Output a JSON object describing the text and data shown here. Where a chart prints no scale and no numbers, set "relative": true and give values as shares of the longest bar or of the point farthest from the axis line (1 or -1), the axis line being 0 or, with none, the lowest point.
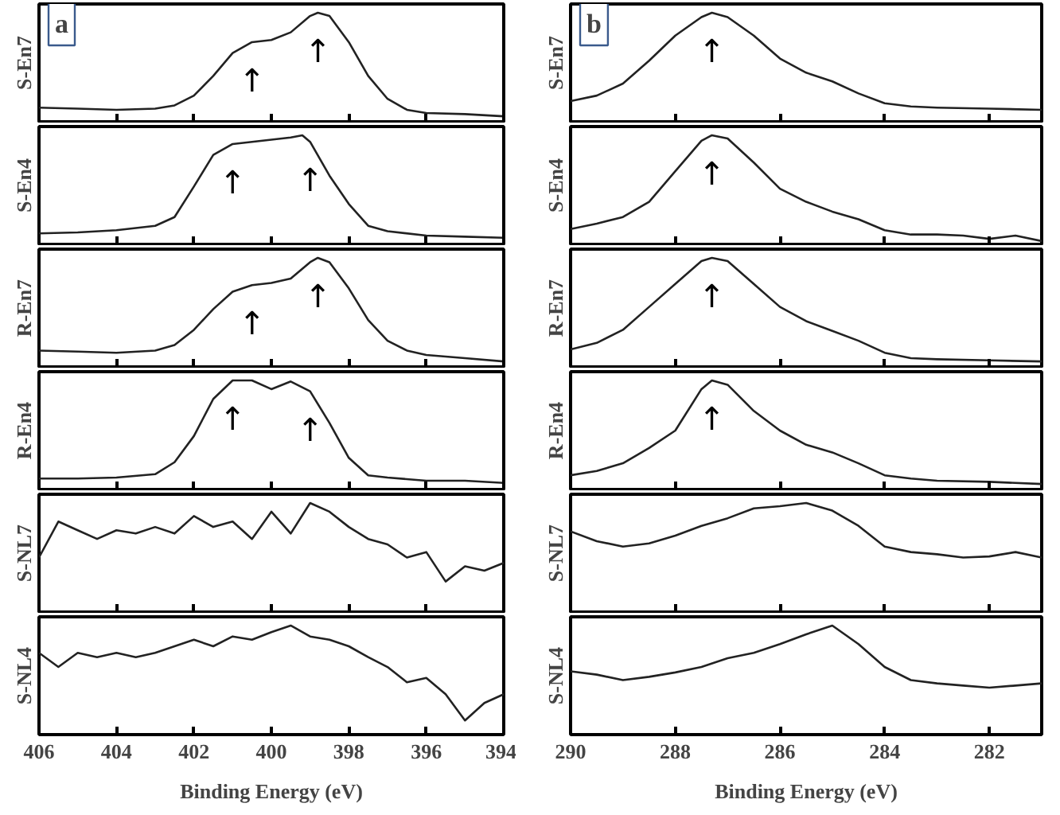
{
  "chart_data": [
    {
      "type": "line",
      "relative": true,
      "ylabel": "S-En7",
      "xlim": [
        406,
        394
      ],
      "xticks": [
        406,
        404,
        402,
        400,
        398,
        396,
        394
      ],
      "tick_labels": false,
      "annotations": [
        "a",
        {
          "text": "↑",
          "x": 400.5,
          "y": 0.73
        },
        {
          "text": "↑",
          "x": 398.8,
          "y": 1
        }
      ],
      "x": [
        406,
        405,
        404,
        403,
        402.5,
        402,
        401.5,
        401,
        400.5,
        400,
        399.5,
        399,
        398.8,
        398.5,
        398,
        397.5,
        397,
        396.5,
        396,
        395,
        394
      ],
      "series": [
        {
          "color": "#222222",
          "values": [
            0.13,
            0.12,
            0.11,
            0.12,
            0.15,
            0.24,
            0.42,
            0.63,
            0.73,
            0.75,
            0.82,
            0.97,
            1,
            0.97,
            0.73,
            0.42,
            0.21,
            0.11,
            0.08,
            0.07,
            0.05
          ]
        }
      ]
    },
    {
      "type": "line",
      "relative": true,
      "ylabel": "S-En7",
      "xlim": [
        290,
        281
      ],
      "xticks": [
        290,
        288,
        286,
        284,
        282
      ],
      "tick_labels": false,
      "annotations": [
        "b",
        {
          "text": "↑",
          "x": 287.3,
          "y": 1
        }
      ],
      "x": [
        290,
        289.5,
        289,
        288.5,
        288,
        287.5,
        287.3,
        287,
        286.5,
        286,
        285.5,
        285,
        284.5,
        284,
        283.5,
        283,
        282,
        281
      ],
      "series": [
        {
          "color": "#222222",
          "values": [
            0.19,
            0.24,
            0.35,
            0.56,
            0.79,
            0.96,
            1,
            0.96,
            0.79,
            0.58,
            0.45,
            0.37,
            0.26,
            0.17,
            0.14,
            0.13,
            0.12,
            0.11
          ]
        }
      ]
    },
    {
      "type": "line",
      "relative": true,
      "ylabel": "S-En4",
      "xlim": [
        406,
        394
      ],
      "xticks": [
        406,
        404,
        402,
        400,
        398,
        396,
        394
      ],
      "tick_labels": false,
      "annotations": [
        {
          "text": "↑",
          "x": 401,
          "y": 0.92
        },
        {
          "text": "↑",
          "x": 399,
          "y": 0.94
        }
      ],
      "x": [
        406,
        405,
        404,
        403,
        402.5,
        402,
        401.5,
        401,
        400.5,
        400,
        399.5,
        399.2,
        399,
        398.5,
        398,
        397.5,
        397,
        396,
        395,
        394
      ],
      "series": [
        {
          "color": "#222222",
          "values": [
            0.1,
            0.11,
            0.13,
            0.17,
            0.25,
            0.53,
            0.82,
            0.92,
            0.94,
            0.96,
            0.98,
            1,
            0.94,
            0.63,
            0.37,
            0.17,
            0.12,
            0.08,
            0.07,
            0.06
          ]
        }
      ]
    },
    {
      "type": "line",
      "relative": true,
      "ylabel": "S-En4",
      "xlim": [
        290,
        281
      ],
      "xticks": [
        290,
        288,
        286,
        284,
        282
      ],
      "tick_labels": false,
      "annotations": [
        {
          "text": "↑",
          "x": 287.3,
          "y": 1
        }
      ],
      "x": [
        290,
        289.5,
        289,
        288.5,
        288,
        287.5,
        287.3,
        287,
        286.5,
        286,
        285.5,
        285,
        284.5,
        284,
        283.5,
        283,
        282.5,
        282,
        281.5,
        281
      ],
      "series": [
        {
          "color": "#222222",
          "values": [
            0.14,
            0.19,
            0.25,
            0.39,
            0.67,
            0.95,
            1,
            0.97,
            0.75,
            0.51,
            0.39,
            0.3,
            0.23,
            0.13,
            0.09,
            0.09,
            0.08,
            0.05,
            0.08,
            0.03
          ]
        }
      ]
    },
    {
      "type": "line",
      "relative": true,
      "ylabel": "R-En7",
      "xlim": [
        406,
        394
      ],
      "xticks": [
        406,
        404,
        402,
        400,
        398,
        396,
        394
      ],
      "tick_labels": false,
      "annotations": [
        {
          "text": "↑",
          "x": 400.5,
          "y": 0.75
        },
        {
          "text": "↑",
          "x": 398.8,
          "y": 1
        }
      ],
      "x": [
        406,
        405,
        404,
        403,
        402.5,
        402,
        401.5,
        401,
        400.5,
        400,
        399.5,
        399,
        398.8,
        398.5,
        398,
        397.5,
        397,
        396.5,
        396,
        395,
        394
      ],
      "series": [
        {
          "color": "#222222",
          "values": [
            0.15,
            0.14,
            0.13,
            0.15,
            0.2,
            0.34,
            0.53,
            0.69,
            0.75,
            0.77,
            0.81,
            0.96,
            1,
            0.96,
            0.72,
            0.43,
            0.24,
            0.15,
            0.11,
            0.08,
            0.05
          ]
        }
      ]
    },
    {
      "type": "line",
      "relative": true,
      "ylabel": "R-En7",
      "xlim": [
        290,
        281
      ],
      "xticks": [
        290,
        288,
        286,
        284,
        282
      ],
      "tick_labels": false,
      "annotations": [
        {
          "text": "↑",
          "x": 287.3,
          "y": 1
        }
      ],
      "x": [
        290,
        289.5,
        289,
        288.5,
        288,
        287.5,
        287.3,
        287,
        286.5,
        286,
        285.5,
        285,
        284.5,
        284,
        283.5,
        283,
        282,
        281
      ],
      "series": [
        {
          "color": "#222222",
          "values": [
            0.16,
            0.22,
            0.34,
            0.55,
            0.76,
            0.97,
            1,
            0.97,
            0.76,
            0.55,
            0.42,
            0.33,
            0.24,
            0.13,
            0.08,
            0.07,
            0.06,
            0.05
          ]
        }
      ]
    },
    {
      "type": "line",
      "relative": true,
      "ylabel": "R-En4",
      "xlim": [
        406,
        394
      ],
      "xticks": [
        406,
        404,
        402,
        400,
        398,
        396,
        394
      ],
      "tick_labels": false,
      "annotations": [
        {
          "text": "↑",
          "x": 401,
          "y": 1
        },
        {
          "text": "↑",
          "x": 399,
          "y": 0.9
        }
      ],
      "x": [
        406,
        405,
        404,
        403,
        402.5,
        402,
        401.5,
        401,
        400.5,
        400,
        399.5,
        399,
        398.5,
        398,
        397.5,
        397,
        396,
        395,
        394
      ],
      "series": [
        {
          "color": "#222222",
          "values": [
            0.1,
            0.1,
            0.11,
            0.14,
            0.25,
            0.49,
            0.83,
            1,
            1,
            0.92,
            0.99,
            0.9,
            0.61,
            0.29,
            0.13,
            0.11,
            0.08,
            0.08,
            0.06
          ]
        }
      ]
    },
    {
      "type": "line",
      "relative": true,
      "ylabel": "R-En4",
      "xlim": [
        290,
        281
      ],
      "xticks": [
        290,
        288,
        286,
        284,
        282
      ],
      "tick_labels": false,
      "annotations": [
        {
          "text": "↑",
          "x": 287.3,
          "y": 1
        }
      ],
      "x": [
        290,
        289.5,
        289,
        288.5,
        288,
        287.5,
        287.3,
        287,
        286.5,
        286,
        285.5,
        285,
        284.5,
        284,
        283.5,
        283,
        282,
        281
      ],
      "series": [
        {
          "color": "#222222",
          "values": [
            0.13,
            0.17,
            0.24,
            0.38,
            0.54,
            0.92,
            1,
            0.96,
            0.72,
            0.54,
            0.41,
            0.34,
            0.24,
            0.13,
            0.1,
            0.08,
            0.07,
            0.05
          ]
        }
      ]
    },
    {
      "type": "line",
      "relative": true,
      "ylabel": "S-NL7",
      "xlim": [
        406,
        394
      ],
      "xticks": [
        406,
        404,
        402,
        400,
        398,
        396,
        394
      ],
      "tick_labels": false,
      "x": [
        406,
        405.5,
        405,
        404.5,
        404,
        403.5,
        403,
        402.5,
        402,
        401.5,
        401,
        400.5,
        400,
        399.5,
        399,
        398.5,
        398,
        397.5,
        397,
        396.5,
        396,
        395.5,
        395,
        394.5,
        394
      ],
      "series": [
        {
          "color": "#222222",
          "values": [
            0.5,
            0.83,
            0.75,
            0.67,
            0.75,
            0.72,
            0.78,
            0.72,
            0.88,
            0.78,
            0.83,
            0.67,
            0.92,
            0.72,
            1,
            0.92,
            0.78,
            0.67,
            0.62,
            0.5,
            0.55,
            0.28,
            0.42,
            0.38,
            0.45
          ]
        }
      ]
    },
    {
      "type": "line",
      "relative": true,
      "ylabel": "S-NL7",
      "xlim": [
        290,
        281
      ],
      "xticks": [
        290,
        288,
        286,
        284,
        282
      ],
      "tick_labels": false,
      "x": [
        290,
        289.5,
        289,
        288.5,
        288,
        287.5,
        287,
        286.5,
        286,
        285.5,
        285,
        284.5,
        284,
        283.5,
        283,
        282.5,
        282,
        281.5,
        281
      ],
      "series": [
        {
          "color": "#222222",
          "values": [
            0.74,
            0.65,
            0.6,
            0.63,
            0.7,
            0.79,
            0.86,
            0.95,
            0.97,
            1,
            0.93,
            0.79,
            0.6,
            0.55,
            0.53,
            0.5,
            0.51,
            0.55,
            0.5
          ]
        }
      ]
    },
    {
      "type": "line",
      "relative": true,
      "ylabel": "S-NL4",
      "xlabel": "Binding Energy (eV)",
      "xlim": [
        406,
        394
      ],
      "xticks": [
        406,
        404,
        402,
        400,
        398,
        396,
        394
      ],
      "tick_labels": "x",
      "x": [
        406,
        405.5,
        405,
        404.5,
        404,
        403.5,
        403,
        402.5,
        402,
        401.5,
        401,
        400.5,
        400,
        399.5,
        399,
        398.5,
        398,
        397.5,
        397,
        396.5,
        396,
        395.5,
        395,
        394.5,
        394
      ],
      "series": [
        {
          "color": "#222222",
          "values": [
            0.75,
            0.62,
            0.75,
            0.71,
            0.75,
            0.71,
            0.75,
            0.81,
            0.87,
            0.81,
            0.9,
            0.87,
            0.94,
            1,
            0.9,
            0.87,
            0.81,
            0.71,
            0.62,
            0.48,
            0.52,
            0.37,
            0.13,
            0.29,
            0.37
          ]
        }
      ]
    },
    {
      "type": "line",
      "relative": true,
      "ylabel": "S-NL4",
      "xlabel": "Binding Energy (eV)",
      "xlim": [
        290,
        281
      ],
      "xticks": [
        290,
        288,
        286,
        284,
        282
      ],
      "tick_labels": "x",
      "x": [
        290,
        289.5,
        289,
        288.5,
        288,
        287.5,
        287,
        286.5,
        286,
        285.5,
        285,
        284.5,
        284,
        283.5,
        283,
        282.5,
        282,
        281.5,
        281
      ],
      "series": [
        {
          "color": "#222222",
          "values": [
            0.58,
            0.55,
            0.5,
            0.53,
            0.57,
            0.62,
            0.7,
            0.75,
            0.83,
            0.92,
            1,
            0.83,
            0.62,
            0.5,
            0.47,
            0.45,
            0.43,
            0.45,
            0.47
          ]
        }
      ]
    }
  ]
}
